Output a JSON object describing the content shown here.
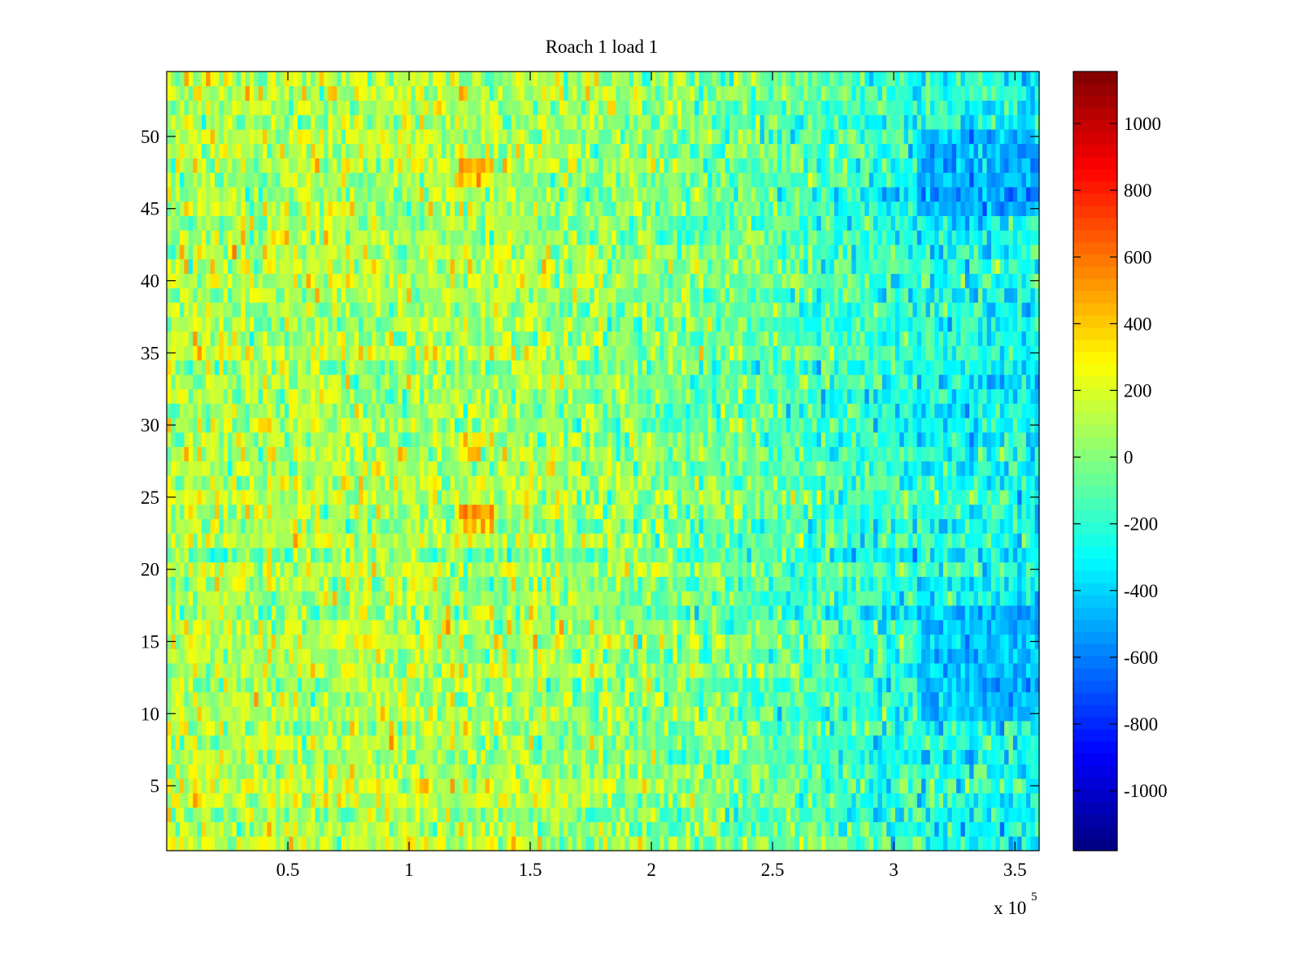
{
  "chart_data": {
    "type": "heatmap",
    "title": "Roach 1 load 1",
    "xlabel": "",
    "ylabel": "",
    "x_multiplier_label": "x 10",
    "x_multiplier_exponent": "5",
    "xlim": [
      0,
      3.6
    ],
    "ylim": [
      0.5,
      54.5
    ],
    "x_ticks": [
      0.5,
      1,
      1.5,
      2,
      2.5,
      3,
      3.5
    ],
    "x_tick_labels": [
      "0.5",
      "1",
      "1.5",
      "2",
      "2.5",
      "3",
      "3.5"
    ],
    "y_ticks": [
      5,
      10,
      15,
      20,
      25,
      30,
      35,
      40,
      45,
      50
    ],
    "y_tick_labels": [
      "5",
      "10",
      "15",
      "20",
      "25",
      "30",
      "35",
      "40",
      "45",
      "50"
    ],
    "rows": 54,
    "colormap": "jet",
    "colormap_levels": 64,
    "clim": [
      -1180,
      1156
    ],
    "colorbar_ticks": [
      1000,
      800,
      600,
      400,
      200,
      0,
      -200,
      -400,
      -600,
      -800,
      -1000
    ],
    "colorbar_tick_labels": [
      "1000",
      "800",
      "600",
      "400",
      "200",
      "0",
      "-200",
      "-400",
      "-600",
      "-800",
      "-1000"
    ],
    "approx_column_mean_profile": {
      "x": [
        0,
        0.5,
        1,
        1.5,
        2,
        2.5,
        3,
        3.6
      ],
      "mean_value": [
        120,
        110,
        110,
        90,
        20,
        -80,
        -200,
        -280
      ]
    },
    "notable_regions": [
      {
        "x_range": [
          1.2,
          1.35
        ],
        "rows": [
          23,
          24
        ],
        "approx_value": 700
      },
      {
        "x_range": [
          1.2,
          1.35
        ],
        "rows": [
          47,
          48
        ],
        "approx_value": 650
      },
      {
        "x_range": [
          1.2,
          1.3
        ],
        "rows": [
          28,
          29
        ],
        "approx_value": 500
      },
      {
        "x_range": [
          3.1,
          3.6
        ],
        "rows": [
          45,
          50
        ],
        "approx_value": -650
      },
      {
        "x_range": [
          3.1,
          3.6
        ],
        "rows": [
          10,
          17
        ],
        "approx_value": -600
      }
    ],
    "grid": false,
    "legend": "colorbar-right"
  }
}
